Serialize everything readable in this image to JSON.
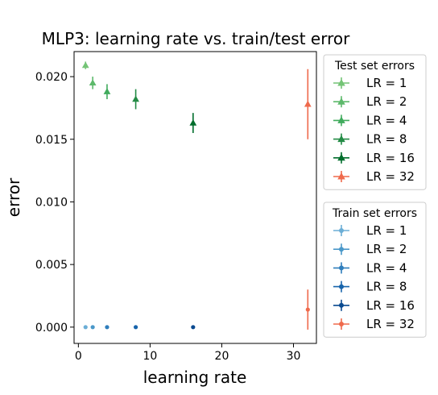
{
  "chart_data": {
    "type": "scatter",
    "title": "MLP3: learning rate vs. train/test error",
    "xlabel": "learning rate",
    "ylabel": "error",
    "xlim": [
      -0.6,
      33.2
    ],
    "ylim": [
      -0.0013,
      0.022
    ],
    "xticks": [
      0,
      10,
      20,
      30
    ],
    "yticks": [
      0.0,
      0.005,
      0.01,
      0.015,
      0.02
    ],
    "ytick_labels": [
      "0.000",
      "0.005",
      "0.010",
      "0.015",
      "0.020"
    ],
    "grid": false,
    "legends": [
      {
        "title": "Test set errors",
        "placement": "upper-right-outside",
        "marker": "triangle",
        "entries": [
          {
            "label": "LR = 1",
            "color": "#74c476"
          },
          {
            "label": "LR = 2",
            "color": "#5db96b"
          },
          {
            "label": "LR = 4",
            "color": "#41ab5d"
          },
          {
            "label": "LR = 8",
            "color": "#238b45"
          },
          {
            "label": "LR = 16",
            "color": "#006d2c"
          },
          {
            "label": "LR = 32",
            "color": "#ef6a4c"
          }
        ]
      },
      {
        "title": "Train set errors",
        "placement": "lower-right-outside",
        "marker": "circle",
        "entries": [
          {
            "label": "LR = 1",
            "color": "#6baed6"
          },
          {
            "label": "LR = 2",
            "color": "#4a98c9"
          },
          {
            "label": "LR = 4",
            "color": "#2f7ebc"
          },
          {
            "label": "LR = 8",
            "color": "#1764ab"
          },
          {
            "label": "LR = 16",
            "color": "#0a4a90"
          },
          {
            "label": "LR = 32",
            "color": "#ef6a4c"
          }
        ]
      }
    ],
    "series": [
      {
        "group": "test",
        "marker": "triangle",
        "color": "#74c476",
        "x": 1,
        "y": 0.0209,
        "yerr": 0.0003
      },
      {
        "group": "test",
        "marker": "triangle",
        "color": "#5db96b",
        "x": 2,
        "y": 0.0195,
        "yerr": 0.0005
      },
      {
        "group": "test",
        "marker": "triangle",
        "color": "#41ab5d",
        "x": 4,
        "y": 0.0188,
        "yerr": 0.0006
      },
      {
        "group": "test",
        "marker": "triangle",
        "color": "#238b45",
        "x": 8,
        "y": 0.0182,
        "yerr": 0.0008
      },
      {
        "group": "test",
        "marker": "triangle",
        "color": "#006d2c",
        "x": 16,
        "y": 0.0163,
        "yerr": 0.0008
      },
      {
        "group": "test",
        "marker": "triangle",
        "color": "#ef6a4c",
        "x": 32,
        "y": 0.0178,
        "yerr": 0.0028
      },
      {
        "group": "train",
        "marker": "circle",
        "color": "#6baed6",
        "x": 1,
        "y": 0.0,
        "yerr": 0
      },
      {
        "group": "train",
        "marker": "circle",
        "color": "#4a98c9",
        "x": 2,
        "y": 0.0,
        "yerr": 0
      },
      {
        "group": "train",
        "marker": "circle",
        "color": "#2f7ebc",
        "x": 4,
        "y": 0.0,
        "yerr": 0
      },
      {
        "group": "train",
        "marker": "circle",
        "color": "#1764ab",
        "x": 8,
        "y": 0.0,
        "yerr": 0
      },
      {
        "group": "train",
        "marker": "circle",
        "color": "#0a4a90",
        "x": 16,
        "y": 0.0,
        "yerr": 0
      },
      {
        "group": "train",
        "marker": "circle",
        "color": "#ef6a4c",
        "x": 32,
        "y": 0.0014,
        "yerr": 0.0016
      }
    ]
  }
}
